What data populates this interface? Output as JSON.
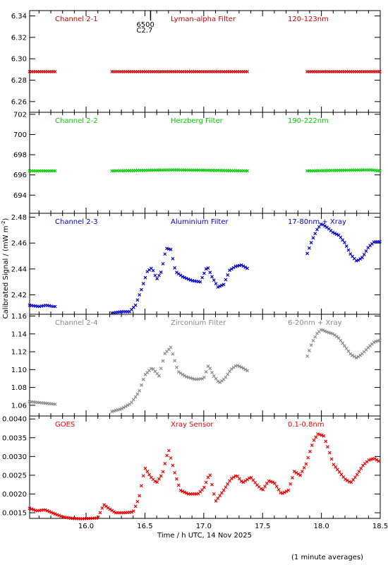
{
  "figure": {
    "ylabel": "Calibrated Signal / (mW m",
    "ylabel_sup": "-2",
    "ylabel_end": ")",
    "xlabel": "Time / h UTC, 14 Nov 2025",
    "footnote": "(1 minute averages)",
    "flare_marker": {
      "time": 16.5,
      "label_top": "6500",
      "label_bottom": "C2.7"
    },
    "x_ticks": [
      "16.0",
      "16.5",
      "17.0",
      "17.5",
      "18.0",
      "18.5"
    ]
  },
  "colors": {
    "red": "#cc0000",
    "green": "#00cc00",
    "blue": "#0000cc",
    "gray": "#888888",
    "goes_red": "#ee0000"
  },
  "chart_data": [
    {
      "type": "scatter",
      "title": "Channel 2-1",
      "filter": "Lyman-alpha Filter",
      "band": "120-123nm",
      "color": "#cc0000",
      "xlim": [
        15.52,
        18.5
      ],
      "ylim": [
        6.25,
        6.345
      ],
      "y_ticks": [
        "6.26",
        "6.28",
        "6.30",
        "6.32",
        "6.34"
      ],
      "segments": [
        {
          "x_start": 15.52,
          "x_end": 15.75,
          "points": [
            [
              15.52,
              6.288
            ],
            [
              15.75,
              6.288
            ]
          ]
        },
        {
          "x_start": 16.22,
          "x_end": 17.38,
          "points": [
            [
              16.22,
              6.288
            ],
            [
              17.38,
              6.288
            ]
          ]
        },
        {
          "x_start": 17.88,
          "x_end": 18.5,
          "points": [
            [
              17.88,
              6.288
            ],
            [
              18.5,
              6.288
            ]
          ]
        }
      ]
    },
    {
      "type": "scatter",
      "title": "Channel 2-2",
      "filter": "Herzberg Filter",
      "band": "190-222nm",
      "color": "#00cc00",
      "xlim": [
        15.52,
        18.5
      ],
      "ylim": [
        692.2,
        702.2
      ],
      "y_ticks": [
        "694",
        "696",
        "698",
        "700",
        "702"
      ],
      "segments": [
        {
          "x_start": 15.52,
          "x_end": 15.75,
          "points": [
            [
              15.52,
              696.4
            ],
            [
              15.75,
              696.4
            ]
          ]
        },
        {
          "x_start": 16.22,
          "x_end": 17.38,
          "points": [
            [
              16.22,
              696.4
            ],
            [
              16.75,
              696.5
            ],
            [
              17.38,
              696.4
            ]
          ]
        },
        {
          "x_start": 17.88,
          "x_end": 18.5,
          "points": [
            [
              17.88,
              696.4
            ],
            [
              18.42,
              696.5
            ],
            [
              18.5,
              696.4
            ]
          ]
        }
      ]
    },
    {
      "type": "scatter",
      "title": "Channel 2-3",
      "filter": "Aluminium Filter",
      "band": "17-80nm + Xray",
      "color": "#0000cc",
      "xlim": [
        15.52,
        18.5
      ],
      "ylim": [
        2.405,
        2.483
      ],
      "y_ticks": [
        "2.42",
        "2.44",
        "2.46",
        "2.48"
      ],
      "segments": [
        {
          "x_start": 15.52,
          "x_end": 15.75,
          "points": [
            [
              15.52,
              2.412
            ],
            [
              15.6,
              2.411
            ],
            [
              15.66,
              2.412
            ],
            [
              15.72,
              2.411
            ],
            [
              15.75,
              2.411
            ]
          ]
        },
        {
          "x_start": 16.22,
          "x_end": 17.38,
          "points": [
            [
              16.22,
              2.406
            ],
            [
              16.3,
              2.407
            ],
            [
              16.37,
              2.407
            ],
            [
              16.42,
              2.412
            ],
            [
              16.47,
              2.424
            ],
            [
              16.52,
              2.438
            ],
            [
              16.56,
              2.441
            ],
            [
              16.6,
              2.432
            ],
            [
              16.64,
              2.438
            ],
            [
              16.68,
              2.456
            ],
            [
              16.72,
              2.455
            ],
            [
              16.76,
              2.438
            ],
            [
              16.82,
              2.434
            ],
            [
              16.9,
              2.431
            ],
            [
              16.97,
              2.43
            ],
            [
              17.03,
              2.442
            ],
            [
              17.07,
              2.434
            ],
            [
              17.12,
              2.426
            ],
            [
              17.17,
              2.428
            ],
            [
              17.22,
              2.439
            ],
            [
              17.27,
              2.442
            ],
            [
              17.32,
              2.443
            ],
            [
              17.38,
              2.44
            ]
          ]
        },
        {
          "x_start": 17.88,
          "x_end": 18.5,
          "points": [
            [
              17.88,
              2.452
            ],
            [
              17.92,
              2.462
            ],
            [
              17.96,
              2.47
            ],
            [
              18.0,
              2.475
            ],
            [
              18.05,
              2.472
            ],
            [
              18.1,
              2.468
            ],
            [
              18.15,
              2.466
            ],
            [
              18.2,
              2.46
            ],
            [
              18.25,
              2.451
            ],
            [
              18.3,
              2.446
            ],
            [
              18.35,
              2.449
            ],
            [
              18.4,
              2.457
            ],
            [
              18.45,
              2.461
            ],
            [
              18.5,
              2.461
            ]
          ]
        }
      ]
    },
    {
      "type": "scatter",
      "title": "Channel 2-4",
      "filter": "Zirconium Filter",
      "band": "6-20nm + Xray",
      "color": "#888888",
      "xlim": [
        15.52,
        18.5
      ],
      "ylim": [
        1.048,
        1.162
      ],
      "y_ticks": [
        "1.06",
        "1.08",
        "1.10",
        "1.12",
        "1.14",
        "1.16"
      ],
      "segments": [
        {
          "x_start": 15.52,
          "x_end": 15.75,
          "points": [
            [
              15.52,
              1.064
            ],
            [
              15.6,
              1.063
            ],
            [
              15.68,
              1.062
            ],
            [
              15.75,
              1.061
            ]
          ]
        },
        {
          "x_start": 16.22,
          "x_end": 17.38,
          "points": [
            [
              16.22,
              1.053
            ],
            [
              16.3,
              1.056
            ],
            [
              16.38,
              1.062
            ],
            [
              16.45,
              1.075
            ],
            [
              16.5,
              1.094
            ],
            [
              16.56,
              1.102
            ],
            [
              16.62,
              1.093
            ],
            [
              16.67,
              1.118
            ],
            [
              16.72,
              1.125
            ],
            [
              16.78,
              1.098
            ],
            [
              16.85,
              1.092
            ],
            [
              16.93,
              1.089
            ],
            [
              17.0,
              1.09
            ],
            [
              17.04,
              1.105
            ],
            [
              17.08,
              1.094
            ],
            [
              17.13,
              1.085
            ],
            [
              17.18,
              1.09
            ],
            [
              17.23,
              1.1
            ],
            [
              17.28,
              1.105
            ],
            [
              17.33,
              1.102
            ],
            [
              17.38,
              1.098
            ]
          ]
        },
        {
          "x_start": 17.88,
          "x_end": 18.5,
          "points": [
            [
              17.88,
              1.115
            ],
            [
              17.92,
              1.13
            ],
            [
              17.96,
              1.14
            ],
            [
              18.0,
              1.145
            ],
            [
              18.05,
              1.142
            ],
            [
              18.1,
              1.14
            ],
            [
              18.15,
              1.135
            ],
            [
              18.2,
              1.126
            ],
            [
              18.25,
              1.117
            ],
            [
              18.3,
              1.113
            ],
            [
              18.35,
              1.118
            ],
            [
              18.4,
              1.125
            ],
            [
              18.45,
              1.131
            ],
            [
              18.5,
              1.133
            ]
          ]
        }
      ]
    },
    {
      "type": "scatter",
      "title": "GOES",
      "filter": "Xray Sensor",
      "band": "0.1-0.8nm",
      "color": "#ee0000",
      "xlim": [
        15.52,
        18.5
      ],
      "ylim": [
        0.00135,
        0.00408
      ],
      "y_ticks": [
        "0.0015",
        "0.0020",
        "0.0025",
        "0.0030",
        "0.0035",
        "0.0040"
      ],
      "segments": [
        {
          "x_start": 15.52,
          "x_end": 18.5,
          "points": [
            [
              15.52,
              0.00162
            ],
            [
              15.58,
              0.00155
            ],
            [
              15.65,
              0.00158
            ],
            [
              15.72,
              0.00149
            ],
            [
              15.8,
              0.00139
            ],
            [
              15.88,
              0.00135
            ],
            [
              15.96,
              0.00134
            ],
            [
              16.04,
              0.00135
            ],
            [
              16.1,
              0.00136
            ],
            [
              16.15,
              0.00172
            ],
            [
              16.2,
              0.0016
            ],
            [
              16.25,
              0.0015
            ],
            [
              16.32,
              0.0015
            ],
            [
              16.4,
              0.00152
            ],
            [
              16.45,
              0.0019
            ],
            [
              16.5,
              0.0027
            ],
            [
              16.55,
              0.00245
            ],
            [
              16.6,
              0.0023
            ],
            [
              16.65,
              0.00255
            ],
            [
              16.7,
              0.0032
            ],
            [
              16.75,
              0.0026
            ],
            [
              16.8,
              0.0021
            ],
            [
              16.87,
              0.002
            ],
            [
              16.95,
              0.002
            ],
            [
              17.0,
              0.00215
            ],
            [
              17.05,
              0.00255
            ],
            [
              17.1,
              0.0018
            ],
            [
              17.17,
              0.0021
            ],
            [
              17.23,
              0.0024
            ],
            [
              17.28,
              0.0025
            ],
            [
              17.33,
              0.0023
            ],
            [
              17.4,
              0.00245
            ],
            [
              17.45,
              0.00225
            ],
            [
              17.5,
              0.0021
            ],
            [
              17.55,
              0.00235
            ],
            [
              17.6,
              0.0023
            ],
            [
              17.66,
              0.002
            ],
            [
              17.72,
              0.0021
            ],
            [
              17.77,
              0.0026
            ],
            [
              17.82,
              0.0025
            ],
            [
              17.87,
              0.0028
            ],
            [
              17.93,
              0.0034
            ],
            [
              17.97,
              0.0036
            ],
            [
              18.02,
              0.00355
            ],
            [
              18.06,
              0.0032
            ],
            [
              18.1,
              0.0028
            ],
            [
              18.15,
              0.0026
            ],
            [
              18.2,
              0.0024
            ],
            [
              18.25,
              0.0023
            ],
            [
              18.3,
              0.0025
            ],
            [
              18.35,
              0.00275
            ],
            [
              18.4,
              0.0029
            ],
            [
              18.45,
              0.00295
            ],
            [
              18.5,
              0.00285
            ]
          ]
        }
      ]
    }
  ]
}
